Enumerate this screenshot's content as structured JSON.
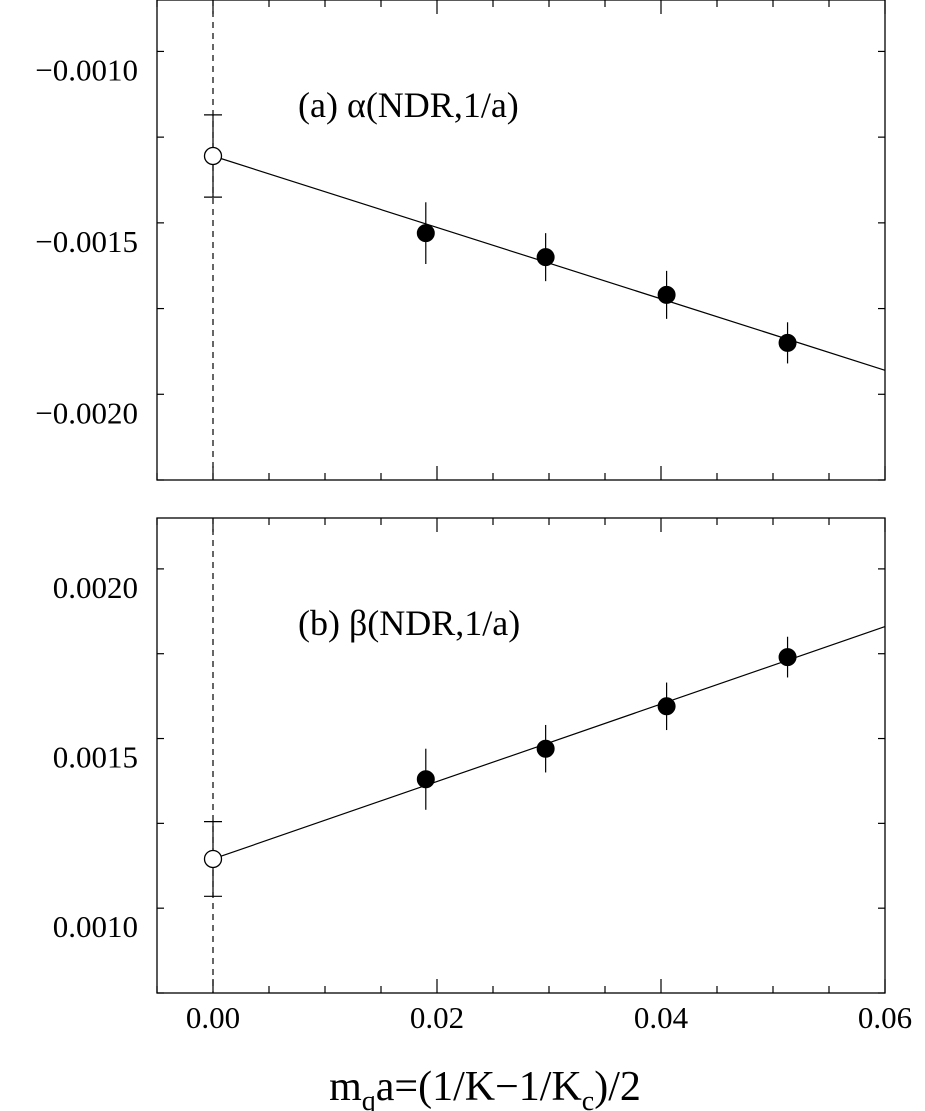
{
  "chart_data": [
    {
      "type": "scatter",
      "panel": "a",
      "annotation": "(a) α(NDR,1/a)",
      "xlabel": "",
      "ylabel": "",
      "xlim": [
        -0.005,
        0.06
      ],
      "ylim": [
        -0.0022,
        -0.0008
      ],
      "yticks": [
        -0.001,
        -0.0015,
        -0.002
      ],
      "ytick_labels": [
        "−0.0010",
        "−0.0015",
        "−0.0020"
      ],
      "grid": false,
      "vertical_reference_line": 0.0,
      "series": [
        {
          "marker": "filled-circle",
          "x": [
            0.019,
            0.0297,
            0.0405,
            0.0513
          ],
          "y": [
            -0.00148,
            -0.00155,
            -0.00166,
            -0.0018
          ],
          "yerr": [
            9e-05,
            7e-05,
            7e-05,
            6e-05
          ]
        },
        {
          "marker": "open-circle",
          "x": [
            0.0
          ],
          "y": [
            -0.001255
          ],
          "yerr": [
            0.00012
          ]
        }
      ],
      "fit_line": {
        "x": [
          0.0,
          0.06
        ],
        "y": [
          -0.001255,
          -0.00188
        ]
      }
    },
    {
      "type": "scatter",
      "panel": "b",
      "annotation": "(b) β(NDR,1/a)",
      "xlabel": "",
      "ylabel": "",
      "xlim": [
        -0.005,
        0.06
      ],
      "ylim": [
        0.0008,
        0.0022
      ],
      "yticks": [
        0.002,
        0.0015,
        0.001
      ],
      "ytick_labels": [
        "0.0020",
        "0.0015",
        "0.0010"
      ],
      "grid": false,
      "vertical_reference_line": 0.0,
      "series": [
        {
          "marker": "filled-circle",
          "x": [
            0.019,
            0.0297,
            0.0405,
            0.0513
          ],
          "y": [
            0.00143,
            0.00152,
            0.001645,
            0.00179
          ],
          "yerr": [
            9e-05,
            7e-05,
            7e-05,
            6e-05
          ]
        },
        {
          "marker": "open-circle",
          "x": [
            0.0
          ],
          "y": [
            0.001195
          ],
          "yerr": [
            0.00011
          ]
        }
      ],
      "fit_line": {
        "x": [
          0.0,
          0.06
        ],
        "y": [
          0.001195,
          0.00188
        ]
      }
    }
  ],
  "shared_x_axis": {
    "xticks": [
      0.0,
      0.02,
      0.04,
      0.06
    ],
    "xtick_labels": [
      "0.00",
      "0.02",
      "0.04",
      "0.06"
    ],
    "xlabel_main": "m",
    "xlabel_sub1": "q",
    "xlabel_mid": "a=(1/K−1/K",
    "xlabel_sub2": "c",
    "xlabel_end": ")/2"
  }
}
